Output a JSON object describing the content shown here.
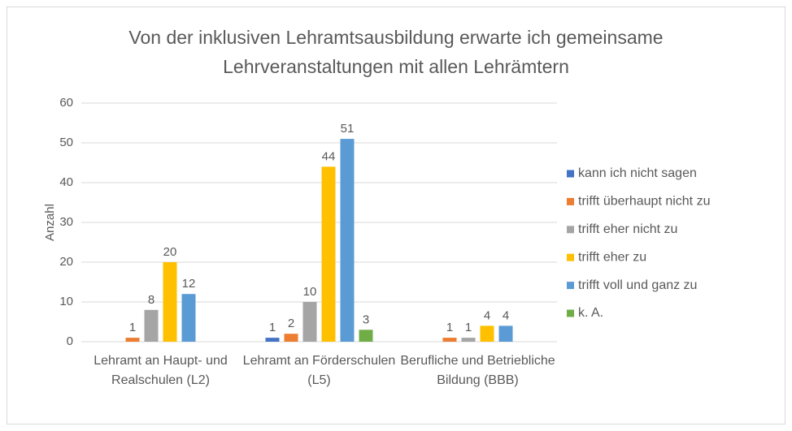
{
  "chart_data": {
    "type": "bar",
    "title": "Von der inklusiven Lehramtsausbildung erwarte ich gemeinsame Lehrveranstaltungen mit allen Lehrämtern",
    "y_label": "Anzahl",
    "categories": [
      "Lehramt an Haupt- und Realschulen (L2)",
      "Lehramt an Förderschulen (L5)",
      "Berufliche und Betriebliche Bildung (BBB)"
    ],
    "series": [
      {
        "name": "kann ich nicht sagen",
        "color": "#4472c4",
        "values": [
          null,
          1,
          null
        ]
      },
      {
        "name": "trifft überhaupt nicht zu",
        "color": "#ed7d31",
        "values": [
          1,
          2,
          1
        ]
      },
      {
        "name": "trifft eher nicht zu",
        "color": "#a5a5a5",
        "values": [
          8,
          10,
          1
        ]
      },
      {
        "name": "trifft eher zu",
        "color": "#ffc000",
        "values": [
          20,
          44,
          4
        ]
      },
      {
        "name": "trifft voll und ganz zu",
        "color": "#5b9bd5",
        "values": [
          12,
          51,
          4
        ]
      },
      {
        "name": "k. A.",
        "color": "#70ad47",
        "values": [
          null,
          3,
          null
        ]
      }
    ],
    "ylim": [
      0,
      60
    ],
    "yticks": [
      0,
      10,
      20,
      30,
      40,
      50,
      60
    ],
    "grid": true,
    "legend": "right"
  }
}
